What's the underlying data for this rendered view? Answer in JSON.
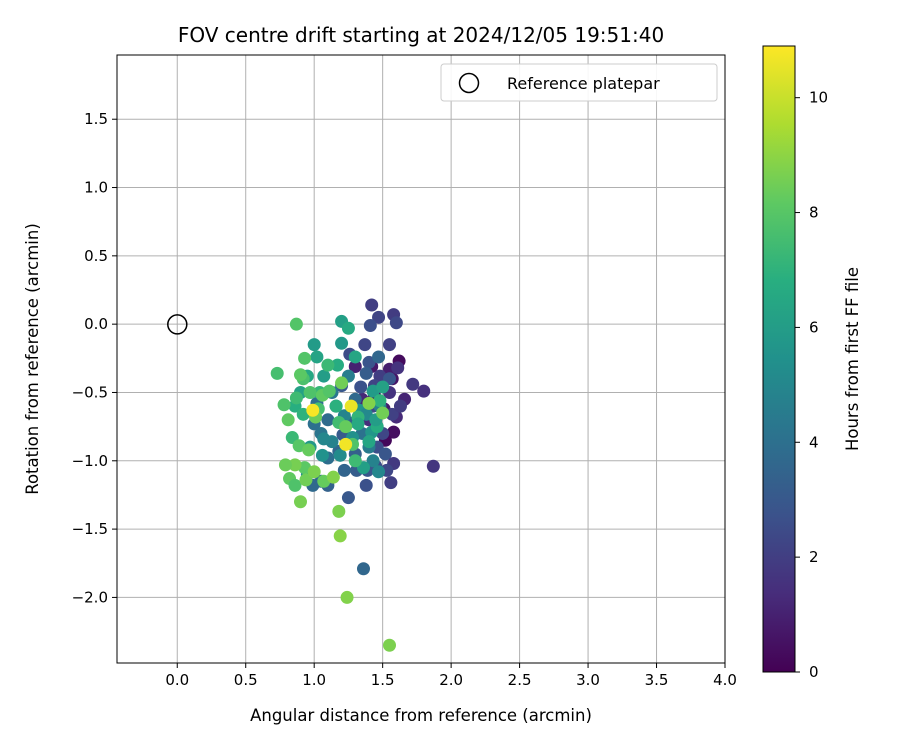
{
  "chart_data": {
    "type": "scatter",
    "title": "FOV centre drift starting at 2024/12/05 19:51:40",
    "xlabel": "Angular distance from reference (arcmin)",
    "ylabel": "Rotation from reference (arcmin)",
    "xlim": [
      -0.44,
      4.0
    ],
    "ylim": [
      -2.48,
      1.97
    ],
    "xticks": [
      "0.0",
      "0.5",
      "1.0",
      "1.5",
      "2.0",
      "2.5",
      "3.0",
      "3.5",
      "4.0"
    ],
    "yticks": [
      "1.5",
      "1.0",
      "0.5",
      "0.0",
      "−0.5",
      "−1.0",
      "−1.5",
      "−2.0"
    ],
    "grid": true,
    "legend": {
      "position": "top-right",
      "entries": [
        "Reference platepar"
      ]
    },
    "reference_point": {
      "x": 0.0,
      "y": 0.0,
      "marker": "open-circle",
      "color": "#000000"
    },
    "colorbar": {
      "label": "Hours from first FF file",
      "colormap": "viridis",
      "range": [
        0,
        10.9
      ],
      "ticks": [
        "0",
        "2",
        "4",
        "6",
        "8",
        "10"
      ]
    },
    "points": [
      [
        1.62,
        -0.27,
        0.3
      ],
      [
        1.57,
        -0.4,
        0.6
      ],
      [
        1.55,
        -0.33,
        0.9
      ],
      [
        1.44,
        -0.52,
        0.5
      ],
      [
        1.51,
        -0.62,
        0.8
      ],
      [
        1.58,
        -0.79,
        0.4
      ],
      [
        1.52,
        -0.85,
        0.2
      ],
      [
        1.42,
        -0.31,
        0.7
      ],
      [
        1.3,
        -0.31,
        1.0
      ],
      [
        1.35,
        -0.55,
        1.2
      ],
      [
        1.4,
        -0.7,
        1.4
      ],
      [
        1.55,
        -0.5,
        1.6
      ],
      [
        1.66,
        -0.55,
        1.1
      ],
      [
        1.6,
        -0.68,
        1.3
      ],
      [
        1.72,
        -0.44,
        1.8
      ],
      [
        1.8,
        -0.49,
        1.5
      ],
      [
        1.87,
        -1.04,
        1.7
      ],
      [
        1.42,
        0.14,
        2.0
      ],
      [
        1.47,
        0.05,
        2.2
      ],
      [
        1.58,
        0.07,
        1.9
      ],
      [
        1.6,
        0.01,
        2.4
      ],
      [
        1.41,
        -0.01,
        2.6
      ],
      [
        1.55,
        -0.15,
        2.1
      ],
      [
        1.37,
        -0.15,
        2.3
      ],
      [
        1.26,
        -0.22,
        2.5
      ],
      [
        1.4,
        -0.28,
        2.8
      ],
      [
        1.48,
        -0.38,
        2.0
      ],
      [
        1.61,
        -0.32,
        1.6
      ],
      [
        1.44,
        -0.45,
        2.2
      ],
      [
        1.34,
        -0.46,
        2.7
      ],
      [
        1.43,
        -0.6,
        2.4
      ],
      [
        1.57,
        -0.66,
        2.1
      ],
      [
        1.63,
        -0.6,
        1.9
      ],
      [
        1.5,
        -0.8,
        2.3
      ],
      [
        1.46,
        -0.9,
        2.6
      ],
      [
        1.52,
        -0.95,
        2.9
      ],
      [
        1.58,
        -1.02,
        1.8
      ],
      [
        1.53,
        -1.07,
        2.3
      ],
      [
        1.45,
        -1.04,
        2.5
      ],
      [
        1.39,
        -1.07,
        2.9
      ],
      [
        1.56,
        -1.16,
        2.0
      ],
      [
        1.38,
        -1.18,
        2.7
      ],
      [
        1.25,
        -1.27,
        3.0
      ],
      [
        1.31,
        -1.07,
        3.2
      ],
      [
        1.22,
        -1.07,
        3.5
      ],
      [
        1.3,
        -0.95,
        3.3
      ],
      [
        1.18,
        -0.93,
        3.6
      ],
      [
        1.1,
        -1.18,
        3.4
      ],
      [
        1.05,
        -1.15,
        3.8
      ],
      [
        0.99,
        -1.18,
        3.7
      ],
      [
        1.1,
        -0.98,
        3.9
      ],
      [
        1.21,
        -0.81,
        3.1
      ],
      [
        1.25,
        -0.72,
        3.4
      ],
      [
        1.3,
        -0.55,
        3.7
      ],
      [
        1.2,
        -0.45,
        3.0
      ],
      [
        1.16,
        -0.6,
        3.5
      ],
      [
        1.1,
        -0.7,
        3.8
      ],
      [
        1.05,
        -0.8,
        4.2
      ],
      [
        1.0,
        -0.73,
        4.0
      ],
      [
        1.02,
        -0.58,
        3.9
      ],
      [
        1.13,
        -0.5,
        4.4
      ],
      [
        1.25,
        -0.38,
        4.6
      ],
      [
        1.38,
        -0.36,
        3.2
      ],
      [
        1.47,
        -0.24,
        3.6
      ],
      [
        1.55,
        -0.4,
        2.9
      ],
      [
        1.35,
        -0.8,
        4.1
      ],
      [
        1.4,
        -0.9,
        4.5
      ],
      [
        1.43,
        -1.0,
        4.8
      ],
      [
        1.47,
        -1.08,
        5.0
      ],
      [
        1.36,
        -1.79,
        3.6
      ],
      [
        1.13,
        -0.86,
        4.8
      ],
      [
        1.19,
        -0.96,
        5.2
      ],
      [
        1.06,
        -0.96,
        5.5
      ],
      [
        0.97,
        -0.9,
        5.8
      ],
      [
        0.95,
        -1.1,
        5.3
      ],
      [
        1.07,
        -0.84,
        5.0
      ],
      [
        1.22,
        -0.67,
        4.9
      ],
      [
        1.28,
        -0.83,
        5.4
      ],
      [
        1.33,
        -0.63,
        5.6
      ],
      [
        1.38,
        -0.66,
        5.1
      ],
      [
        1.42,
        -0.79,
        5.7
      ],
      [
        1.48,
        -0.6,
        4.7
      ],
      [
        1.43,
        -0.49,
        5.9
      ],
      [
        1.5,
        -0.46,
        6.2
      ],
      [
        1.3,
        -0.24,
        6.4
      ],
      [
        1.2,
        0.02,
        6.1
      ],
      [
        1.25,
        -0.03,
        6.6
      ],
      [
        1.2,
        -0.14,
        5.8
      ],
      [
        1.17,
        -0.3,
        6.7
      ],
      [
        1.07,
        -0.38,
        6.0
      ],
      [
        1.0,
        -0.15,
        5.9
      ],
      [
        1.02,
        -0.24,
        6.3
      ],
      [
        0.95,
        -0.38,
        6.5
      ],
      [
        0.9,
        -0.5,
        6.2
      ],
      [
        0.86,
        -0.6,
        6.8
      ],
      [
        0.92,
        -0.66,
        7.0
      ],
      [
        1.04,
        -0.5,
        7.2
      ],
      [
        1.16,
        -0.6,
        6.9
      ],
      [
        1.1,
        -0.3,
        7.3
      ],
      [
        1.32,
        -0.68,
        7.1
      ],
      [
        1.46,
        -0.75,
        6.7
      ],
      [
        1.4,
        -0.86,
        6.4
      ],
      [
        1.45,
        -0.7,
        6.0
      ],
      [
        1.48,
        -0.56,
        7.0
      ],
      [
        1.36,
        -1.05,
        6.1
      ],
      [
        1.3,
        -1.0,
        7.4
      ],
      [
        1.32,
        -0.73,
        6.6
      ],
      [
        1.18,
        -0.72,
        7.5
      ],
      [
        1.03,
        -0.62,
        7.6
      ],
      [
        0.97,
        -0.5,
        7.8
      ],
      [
        0.92,
        -0.4,
        7.7
      ],
      [
        0.93,
        -0.25,
        7.9
      ],
      [
        0.87,
        -0.54,
        7.4
      ],
      [
        0.78,
        -0.59,
        7.8
      ],
      [
        0.73,
        -0.36,
        7.6
      ],
      [
        0.87,
        0.0,
        7.9
      ],
      [
        0.9,
        -0.37,
        8.1
      ],
      [
        0.81,
        -0.7,
        8.2
      ],
      [
        0.84,
        -0.83,
        7.3
      ],
      [
        0.89,
        -0.89,
        8.0
      ],
      [
        0.96,
        -0.92,
        8.3
      ],
      [
        1.01,
        -0.68,
        8.4
      ],
      [
        1.06,
        -0.52,
        8.2
      ],
      [
        1.11,
        -0.49,
        7.9
      ],
      [
        1.2,
        -0.43,
        8.5
      ],
      [
        1.23,
        -0.75,
        8.3
      ],
      [
        1.28,
        -0.88,
        7.8
      ],
      [
        0.93,
        -1.05,
        8.1
      ],
      [
        0.86,
        -1.03,
        8.6
      ],
      [
        0.79,
        -1.03,
        8.4
      ],
      [
        0.82,
        -1.13,
        8.2
      ],
      [
        0.86,
        -1.18,
        7.8
      ],
      [
        0.94,
        -1.14,
        8.5
      ],
      [
        1.0,
        -1.08,
        8.7
      ],
      [
        1.07,
        -1.15,
        8.3
      ],
      [
        1.14,
        -1.12,
        8.8
      ],
      [
        0.9,
        -1.3,
        8.6
      ],
      [
        1.18,
        -1.37,
        8.7
      ],
      [
        1.19,
        -1.55,
        8.9
      ],
      [
        1.24,
        -2.0,
        8.8
      ],
      [
        1.55,
        -2.35,
        8.7
      ],
      [
        1.5,
        -0.65,
        8.5
      ],
      [
        1.4,
        -0.58,
        8.8
      ],
      [
        0.99,
        -0.63,
        10.8
      ],
      [
        1.27,
        -0.6,
        10.6
      ],
      [
        1.23,
        -0.88,
        10.7
      ]
    ]
  }
}
